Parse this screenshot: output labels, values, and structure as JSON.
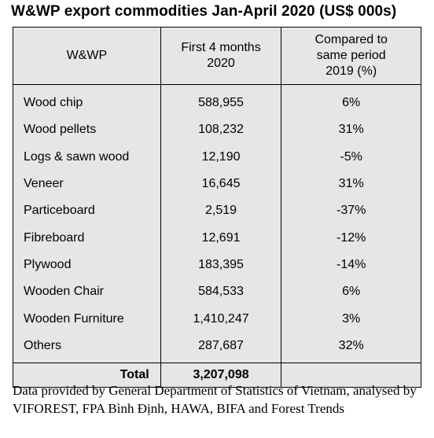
{
  "title": "W&WP export commodities Jan-April 2020 (US$ 000s)",
  "table": {
    "headers": [
      "W&WP",
      "First 4 months 2020",
      "Compared to same period 2019 (%)"
    ],
    "header_lines": {
      "col2": [
        "First 4 months",
        "2020"
      ],
      "col3": [
        "Compared to",
        "same period",
        "2019 (%)"
      ]
    },
    "rows": [
      {
        "name": "Wood chip",
        "value": "588,955",
        "change": "6%"
      },
      {
        "name": "Wood pellets",
        "value": "108,232",
        "change": "31%"
      },
      {
        "name": "Logs & sawn wood",
        "value": "12,190",
        "change": "-5%"
      },
      {
        "name": "Veneer",
        "value": "16,645",
        "change": "31%"
      },
      {
        "name": "Particeboard",
        "value": "2,519",
        "change": "-37%"
      },
      {
        "name": "Fibreboard",
        "value": "12,691",
        "change": "-12%"
      },
      {
        "name": "Plywood",
        "value": "183,395",
        "change": "-14%"
      },
      {
        "name": "Wooden Chair",
        "value": "584,533",
        "change": "6%"
      },
      {
        "name": "Wooden Furniture",
        "value": "1,410,247",
        "change": "3%"
      },
      {
        "name": "Others",
        "value": "287,687",
        "change": "32%"
      }
    ],
    "total": {
      "label": "Total",
      "value": "3,207,098",
      "change": ""
    }
  },
  "footnote": "Data provided by General Department of Statistics of Vietnam, analysed by VIFOREST, FPA Bình Định, HAWA, BIFA and Forest Trends",
  "colors": {
    "table_fill": "#e6e6e6",
    "border": "#000000"
  }
}
